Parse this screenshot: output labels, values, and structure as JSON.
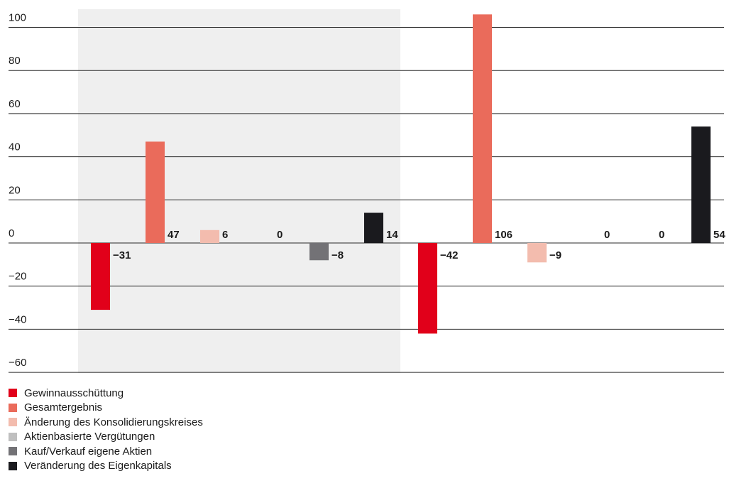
{
  "chart_data": {
    "type": "bar",
    "title": "",
    "xlabel": "",
    "ylabel": "",
    "ylim": [
      -60,
      100
    ],
    "yticks": [
      100,
      80,
      60,
      40,
      20,
      0,
      -20,
      -40,
      -60
    ],
    "ytick_labels": [
      "100",
      "80",
      "60",
      "40",
      "20",
      "0",
      "−20",
      "−40",
      "−60"
    ],
    "grid": true,
    "legend_position": "bottom-left",
    "highlighted_group": 0,
    "highlight_color": "#efefef",
    "groups": [
      {
        "bars": [
          {
            "series": 0,
            "value": -31,
            "label": "−31"
          },
          {
            "series": 1,
            "value": 47,
            "label": "47"
          },
          {
            "series": 2,
            "value": 6,
            "label": "6"
          },
          {
            "series": 3,
            "value": 0,
            "label": "0"
          },
          {
            "series": 4,
            "value": -8,
            "label": "−8"
          },
          {
            "series": 5,
            "value": 14,
            "label": "14"
          }
        ]
      },
      {
        "bars": [
          {
            "series": 0,
            "value": -42,
            "label": "−42"
          },
          {
            "series": 1,
            "value": 106,
            "label": "106"
          },
          {
            "series": 2,
            "value": -9,
            "label": "−9"
          },
          {
            "series": 3,
            "value": 0,
            "label": "0"
          },
          {
            "series": 4,
            "value": 0,
            "label": "0"
          },
          {
            "series": 5,
            "value": 54,
            "label": "54"
          }
        ]
      }
    ],
    "series": [
      {
        "name": "Gewinnausschüttung",
        "color": "#e1001a"
      },
      {
        "name": "Gesamtergebnis",
        "color": "#ea6b5b"
      },
      {
        "name": "Änderung des Konsolidierungskreises",
        "color": "#f3bcae"
      },
      {
        "name": "Aktienbasierte Vergütungen",
        "color": "#bfbfbf"
      },
      {
        "name": "Kauf/Verkauf eigene Aktien",
        "color": "#737276"
      },
      {
        "name": "Veränderung des Eigenkapitals",
        "color": "#1a1a1e"
      }
    ]
  }
}
